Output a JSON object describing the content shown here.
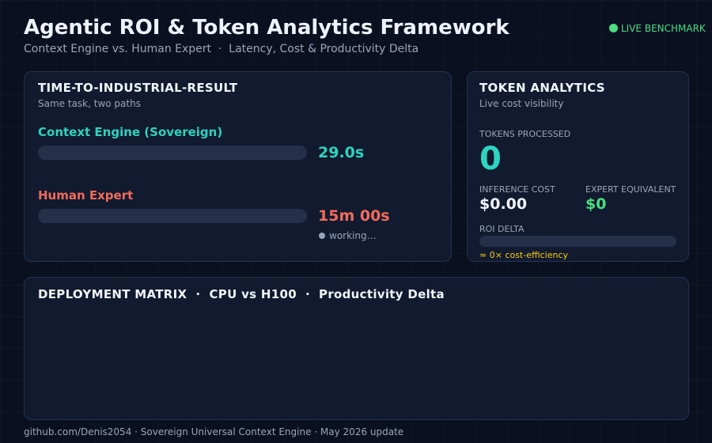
{
  "header": {
    "title": "Agentic ROI & Token Analytics Framework",
    "subtitle": "Context Engine vs. Human Expert  ·  Latency, Cost & Productivity Delta",
    "badge": "LIVE BENCHMARK"
  },
  "time_panel": {
    "title": "TIME-TO-INDUSTRIAL-RESULT",
    "subtitle": "Same task, two paths",
    "rows": [
      {
        "label": "Context Engine (Sovereign)",
        "value": "29.0s"
      },
      {
        "label": "Human Expert",
        "value": "15m 00s"
      }
    ],
    "status": "working…"
  },
  "token_panel": {
    "title": "TOKEN ANALYTICS",
    "subtitle": "Live cost visibility",
    "tokens_label": "TOKENS PROCESSED",
    "tokens_value": "0",
    "cost_label": "INFERENCE COST",
    "cost_value": "$0.00",
    "expert_label": "EXPERT EQUIVALENT",
    "expert_value": "$0",
    "roi_label": "ROI DELTA",
    "roi_note": "≈ 0× cost-efficiency"
  },
  "matrix_panel": {
    "title": "DEPLOYMENT MATRIX  ·  CPU vs H100  ·  Productivity Delta"
  },
  "footer": "github.com/Denis2054 · Sovereign Universal Context Engine · May 2026 update"
}
